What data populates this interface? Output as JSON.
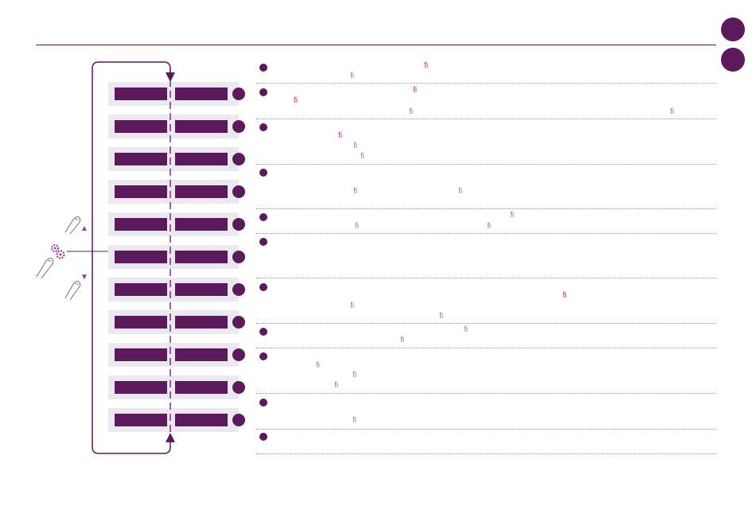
{
  "glyph": "ﬁ",
  "up_arrow": "▲",
  "down_arrow": "▼",
  "colors": {
    "primary": "#5b1a5b",
    "accent": "#a0369a",
    "row_bg": "#ece8f0",
    "separator": "#999999"
  },
  "icons": {
    "press_up": "finger-tap-icon",
    "settings": "gears-icon",
    "press_down": "finger-tap-icon"
  },
  "rows": 11,
  "list_items": 11
}
